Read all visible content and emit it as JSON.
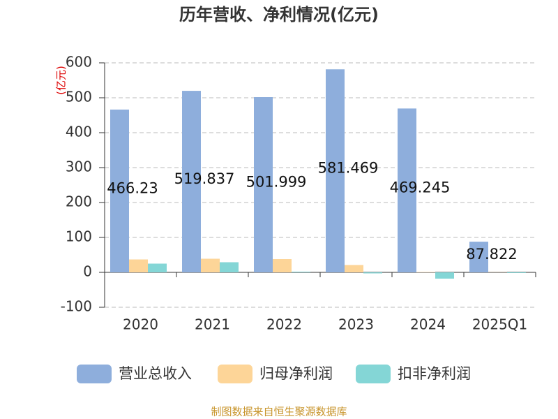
{
  "chart_data": {
    "type": "bar",
    "title": "历年营收、净利情况(亿元)",
    "y_unit_label": "(亿元)",
    "source": "制图数据来自恒生聚源数据库",
    "categories": [
      "2020",
      "2021",
      "2022",
      "2023",
      "2024",
      "2025Q1"
    ],
    "series": [
      {
        "name": "营业总收入",
        "color": "#8eaedc",
        "values": [
          466.23,
          519.837,
          501.999,
          581.469,
          469.245,
          87.822
        ],
        "show_labels": true
      },
      {
        "name": "归母净利润",
        "color": "#fdd598",
        "values": [
          37,
          39,
          38,
          21,
          1,
          0.5
        ],
        "show_labels": false
      },
      {
        "name": "扣非净利润",
        "color": "#84d6d6",
        "values": [
          25,
          29,
          2,
          -3,
          -18,
          -2
        ],
        "show_labels": false
      }
    ],
    "ylim": [
      -100,
      600
    ],
    "yticks": [
      -100,
      0,
      100,
      200,
      300,
      400,
      500,
      600
    ],
    "grid": true
  }
}
